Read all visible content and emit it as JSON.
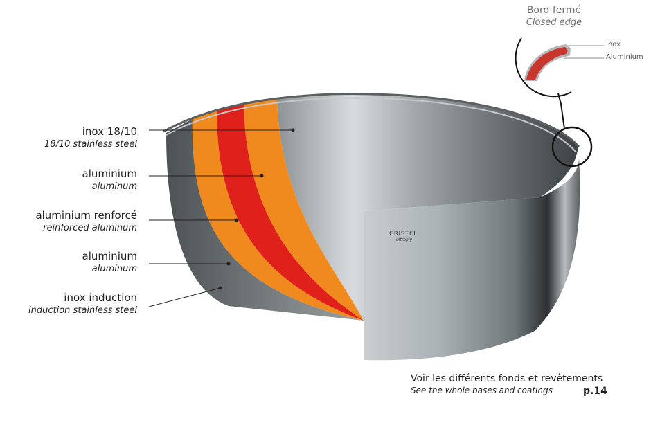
{
  "layers": [
    {
      "fr": "inox 18/10",
      "en": "18/10 stainless steel"
    },
    {
      "fr": "aluminium",
      "en": "aluminum"
    },
    {
      "fr": "aluminium renforcé",
      "en": "reinforced aluminum"
    },
    {
      "fr": "aluminium",
      "en": "aluminum"
    },
    {
      "fr": "inox induction",
      "en": "induction stainless steel"
    }
  ],
  "inset": {
    "title_fr": "Bord fermé",
    "title_en": "Closed edge",
    "label_outer": "Inox",
    "label_inner": "Aluminium"
  },
  "logo": {
    "brand": "CRISTEL",
    "line": "ultraply"
  },
  "footer": {
    "fr": "Voir les différents fonds et revêtements",
    "en": "See the whole bases and coatings",
    "page": "p.14"
  },
  "colors": {
    "orange": "#f08a1e",
    "red": "#e0201b",
    "inset_red": "#c8372d",
    "steel": "#9da3a6"
  }
}
